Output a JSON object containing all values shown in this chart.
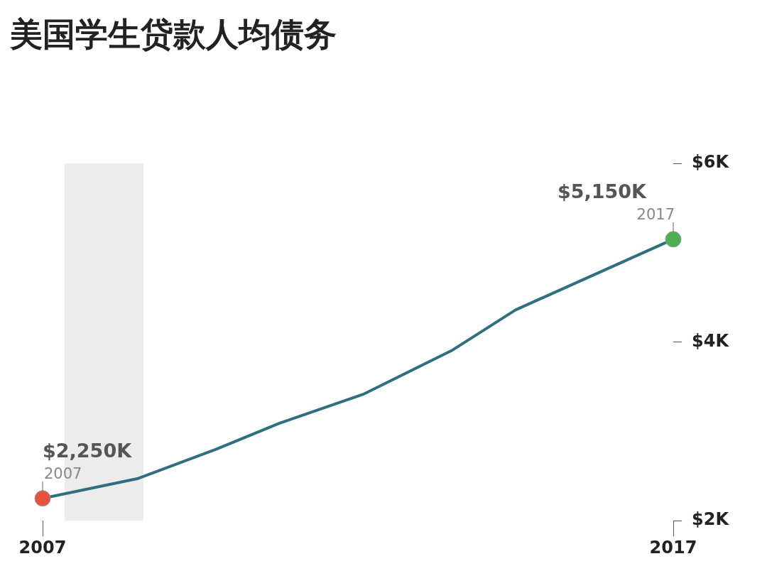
{
  "chart_data": {
    "type": "line",
    "title": "美国学生贷款人均债务",
    "x": [
      2007,
      2008.5,
      2009.75,
      2010.75,
      2012.1,
      2013.5,
      2014.5,
      2017
    ],
    "series": [
      {
        "color": "#2f6f7e",
        "values": [
          2250,
          2470,
          2800,
          3090,
          3420,
          3910,
          4360,
          5150
        ],
        "colors": [
          "#e9513f",
          null,
          null,
          null,
          null,
          null,
          null,
          "#4caf50"
        ],
        "value_labels": [
          "$2,250K",
          null,
          null,
          null,
          null,
          null,
          null,
          "$5,150K"
        ]
      }
    ],
    "xlim": [
      2007,
      2017
    ],
    "xticks": [
      2007,
      2017
    ],
    "ylim": [
      2000,
      6000
    ],
    "yticks": [
      {
        "value": 2000,
        "label": "$2K"
      },
      {
        "value": 4000,
        "label": "$4K"
      },
      {
        "value": 6000,
        "label": "$6K"
      }
    ],
    "bands": [
      {
        "axis": "x",
        "from": 2007.35,
        "to": 2008.6,
        "color": "#ececec"
      }
    ],
    "annotations": [
      {
        "text": "2007",
        "x": 2007,
        "y": 2250
      },
      {
        "text": "2017",
        "x": 2017,
        "y": 5150
      }
    ],
    "line_style": "solid",
    "grid": false,
    "legend": false
  }
}
